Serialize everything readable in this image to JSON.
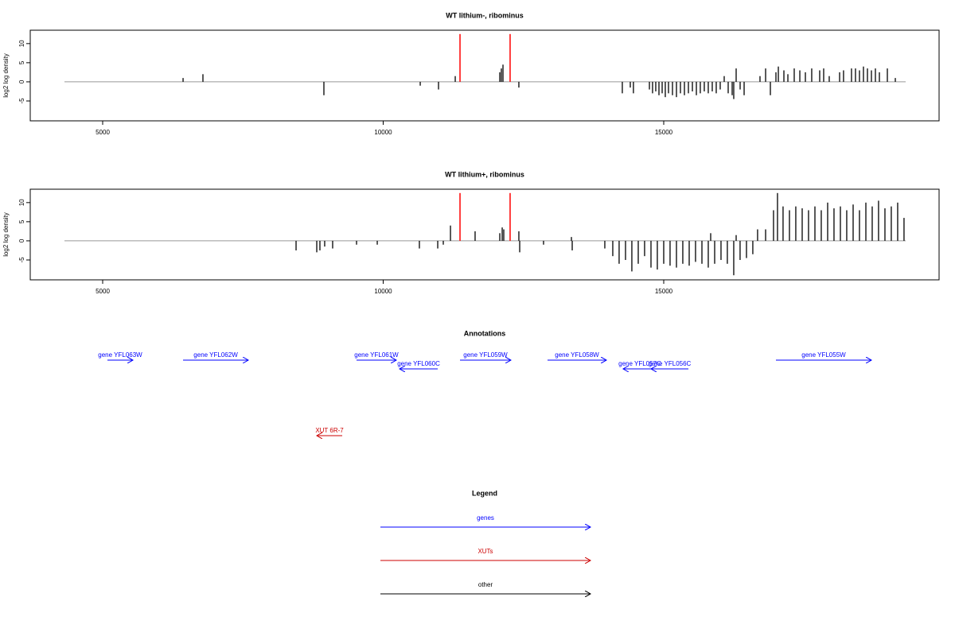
{
  "chart_data": [
    {
      "type": "bar",
      "title": "WT lithium-, ribominus",
      "ylabel": "log2 log density",
      "xlim": [
        3709,
        19908
      ],
      "ylim": [
        -10.2,
        13.5
      ],
      "xticks": [
        5000,
        10000,
        15000
      ],
      "yticks": [
        -5,
        0,
        5,
        10
      ],
      "series": [
        {
          "color": "#000000",
          "x": [
            6433,
            6787,
            8943,
            10660,
            10986,
            11284,
            12078,
            12106,
            12135,
            12418,
            14262,
            14404,
            14460,
            14745,
            14801,
            14858,
            14915,
            14972,
            15028,
            15085,
            15156,
            15227,
            15298,
            15369,
            15440,
            15511,
            15582,
            15652,
            15723,
            15794,
            15865,
            15936,
            16007,
            16078,
            16149,
            16220,
            16248,
            16291,
            16362,
            16433,
            16716,
            16816,
            16901,
            17000,
            17043,
            17142,
            17213,
            17326,
            17426,
            17525,
            17638,
            17780,
            17851,
            17950,
            18135,
            18205,
            18347,
            18418,
            18489,
            18560,
            18631,
            18702,
            18773,
            18844,
            18986,
            19128
          ],
          "values": [
            1,
            2,
            -3.5,
            -1,
            -2,
            1.5,
            2.5,
            3.5,
            4.5,
            -1.5,
            -3,
            -1.5,
            -3,
            -2,
            -3,
            -2.5,
            -3.5,
            -3,
            -4,
            -3,
            -3.5,
            -4,
            -3,
            -3.5,
            -3,
            -2.5,
            -3.5,
            -3,
            -2.5,
            -3,
            -2.5,
            -3,
            -2,
            1.5,
            -3,
            -3.5,
            -4.5,
            3.5,
            -2,
            -3.5,
            1.5,
            3.5,
            -3.5,
            2.5,
            4,
            3,
            2,
            3.5,
            3,
            2.5,
            3.5,
            3,
            3.5,
            1.5,
            2.5,
            3,
            3.5,
            3.5,
            3,
            4,
            3.5,
            3,
            3.5,
            2.5,
            3.5,
            1
          ]
        },
        {
          "color": "#ff0000",
          "x": [
            11369,
            12262
          ],
          "values": [
            12.5,
            12.5
          ]
        }
      ]
    },
    {
      "type": "bar",
      "title": "WT lithium+, ribominus",
      "ylabel": "log2 log density",
      "xlim": [
        3709,
        19908
      ],
      "ylim": [
        -10.2,
        13.5
      ],
      "xticks": [
        5000,
        10000,
        15000
      ],
      "yticks": [
        -5,
        0,
        5,
        10
      ],
      "series": [
        {
          "color": "#000000",
          "x": [
            8447,
            8816,
            8872,
            8957,
            9099,
            9525,
            9894,
            10645,
            10972,
            11071,
            11199,
            11638,
            12078,
            12121,
            12149,
            12418,
            12433,
            12858,
            13355,
            13369,
            13950,
            14092,
            14205,
            14319,
            14432,
            14546,
            14659,
            14773,
            14886,
            15000,
            15113,
            15227,
            15340,
            15454,
            15567,
            15681,
            15794,
            15837,
            15908,
            16021,
            16134,
            16248,
            16291,
            16361,
            16475,
            16588,
            16673,
            16816,
            16957,
            17028,
            17127,
            17241,
            17354,
            17468,
            17581,
            17695,
            17808,
            17922,
            18035,
            18149,
            18262,
            18376,
            18489,
            18603,
            18716,
            18829,
            18943,
            19056,
            19170,
            19283
          ],
          "values": [
            -2.5,
            -3,
            -2.5,
            -1.5,
            -2,
            -1,
            -1,
            -2,
            -2,
            -1,
            4,
            2.5,
            2,
            3.5,
            3,
            2.5,
            -3,
            -1,
            1,
            -2.5,
            -2,
            -4,
            -6,
            -5,
            -8,
            -6,
            -4,
            -7,
            -7.5,
            -6,
            -6.5,
            -7,
            -6,
            -6.5,
            -5.5,
            -6,
            -7,
            2,
            -6,
            -5,
            -6,
            -9,
            1.5,
            -5,
            -4.5,
            -3.5,
            3,
            3,
            8,
            12.5,
            9,
            8,
            9,
            8.5,
            8,
            9,
            8,
            10,
            8.5,
            9,
            8,
            9.5,
            8,
            10,
            9,
            10.5,
            8.5,
            9,
            10,
            6
          ]
        },
        {
          "color": "#ff0000",
          "x": [
            11369,
            12262
          ],
          "values": [
            12.5,
            12.5
          ]
        }
      ]
    }
  ],
  "annotations": {
    "title": "Annotations",
    "genes": [
      {
        "label": "gene YFL063W",
        "start": 5085,
        "end": 5539
      },
      {
        "label": "gene YFL062W",
        "start": 6433,
        "end": 7596
      },
      {
        "label": "gene YFL061W",
        "start": 9525,
        "end": 10234
      },
      {
        "label": "gene YFL060C",
        "start": 10972,
        "end": 10291
      },
      {
        "label": "gene YFL059W",
        "start": 11369,
        "end": 12276
      },
      {
        "label": "gene YFL058W",
        "start": 12929,
        "end": 13979
      },
      {
        "label": "gene YFL057C",
        "start": 14872,
        "end": 14276
      },
      {
        "label": "gene YFL056C",
        "start": 15440,
        "end": 14773
      },
      {
        "label": "gene YFL055W",
        "start": 17000,
        "end": 18702
      }
    ],
    "xuts": [
      {
        "label": "XUT 6R-7",
        "start": 9270,
        "end": 8816
      }
    ]
  },
  "legend": {
    "title": "Legend",
    "items": [
      {
        "label": "genes",
        "color": "#0000ff"
      },
      {
        "label": "XUTs",
        "color": "#cc0000"
      },
      {
        "label": "other",
        "color": "#000000"
      }
    ]
  }
}
